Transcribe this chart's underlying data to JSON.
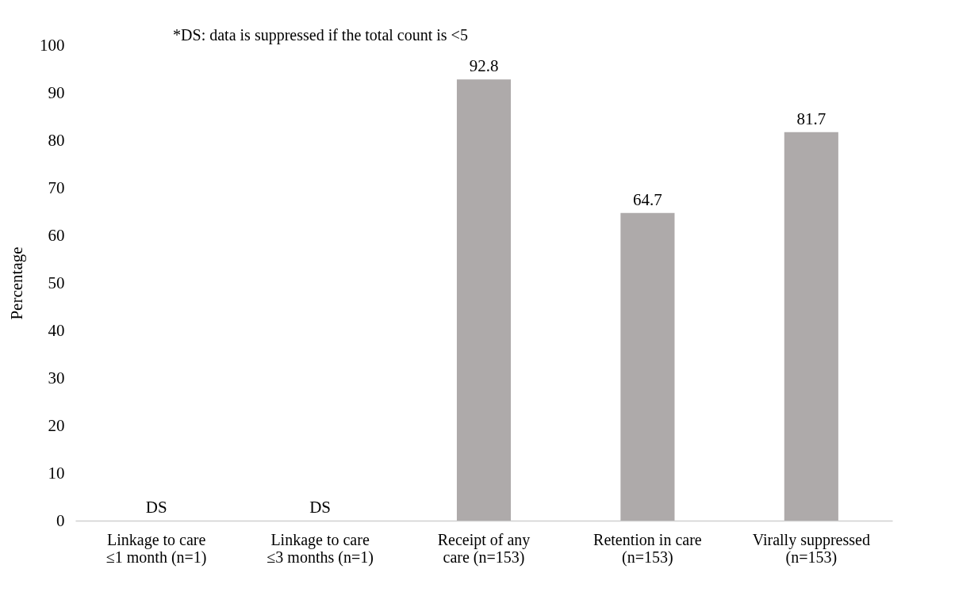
{
  "chart_data": {
    "type": "bar",
    "ylabel": "Percentage",
    "categories": [
      "Linkage to care\n≤1 month (n=1)",
      "Linkage to care\n≤3 months (n=1)",
      "Receipt of any\ncare (n=153)",
      "Retention in care\n(n=153)",
      "Virally suppressed\n(n=153)"
    ],
    "values": [
      null,
      null,
      92.8,
      64.7,
      81.7
    ],
    "value_labels": [
      "DS",
      "DS",
      "92.8",
      "64.7",
      "81.7"
    ],
    "color": "#aeaaaa",
    "ylim": [
      0,
      100
    ],
    "yticks": [
      0,
      10,
      20,
      30,
      40,
      50,
      60,
      70,
      80,
      90,
      100
    ],
    "grid": false,
    "annotations": [
      "*DS: data is suppressed if the total count is <5"
    ]
  }
}
